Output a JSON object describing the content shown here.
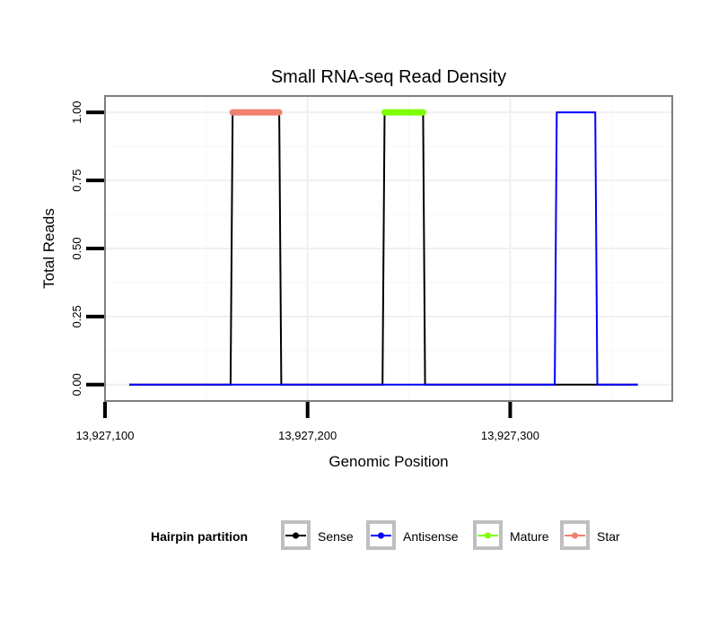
{
  "chart_data": {
    "type": "line",
    "title": "Small RNA-seq Read Density",
    "xlabel": "Genomic Position",
    "ylabel": "Total Reads",
    "xlim": [
      13927100,
      13927380
    ],
    "ylim": [
      -0.06,
      1.06
    ],
    "x_ticks": [
      13927100,
      13927200,
      13927300
    ],
    "x_tick_labels": [
      "13,927,100",
      "13,927,200",
      "13,927,300"
    ],
    "y_ticks": [
      0.0,
      0.25,
      0.5,
      0.75,
      1.0
    ],
    "y_tick_labels": [
      "0.00",
      "0.25",
      "0.50",
      "0.75",
      "1.00"
    ],
    "grid": true,
    "legend": {
      "title": "Hairpin partition",
      "position": "bottom",
      "entries": [
        "Sense",
        "Antisense",
        "Mature",
        "Star"
      ]
    },
    "series": [
      {
        "name": "Sense",
        "color": "#000000",
        "x": [
          13927112,
          13927162,
          13927163,
          13927186,
          13927187,
          13927237,
          13927238,
          13927257,
          13927258,
          13927363
        ],
        "y": [
          0,
          0,
          1,
          1,
          0,
          0,
          1,
          1,
          0,
          0
        ]
      },
      {
        "name": "Antisense",
        "color": "#0000ff",
        "x": [
          13927112,
          13927322,
          13927323,
          13927342,
          13927343,
          13927363
        ],
        "y": [
          0,
          0,
          1,
          1,
          0,
          0
        ]
      },
      {
        "name": "Mature",
        "color": "#7fff00",
        "x": [
          13927238,
          13927257
        ],
        "y": [
          1,
          1
        ]
      },
      {
        "name": "Star",
        "color": "#f08070",
        "x": [
          13927163,
          13927186
        ],
        "y": [
          1,
          1
        ]
      }
    ]
  }
}
